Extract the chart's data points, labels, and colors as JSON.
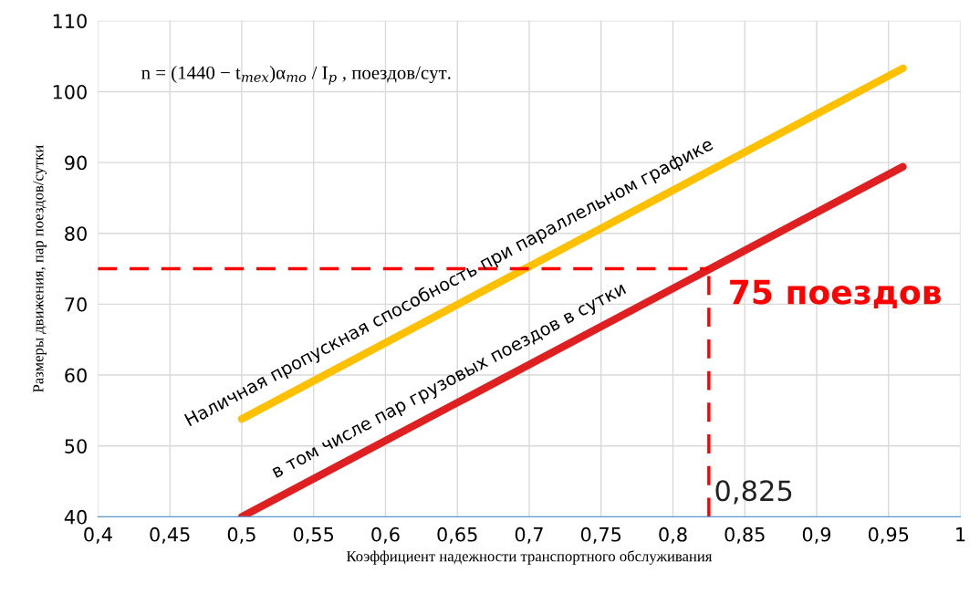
{
  "chart_data": {
    "type": "line",
    "xlabel": "Коэффициент надежности транспортного обслуживания",
    "ylabel": "Размеры движения, пар поездов/сутки",
    "x": [
      0.5,
      0.96
    ],
    "series": [
      {
        "name": "Наличная пропускная способность при параллельном графике",
        "color": "#ffc000",
        "values": [
          53.8,
          103.3
        ]
      },
      {
        "name": "в том числе пар грузовых поездов в сутки",
        "color": "#e02020",
        "values": [
          40,
          89.4
        ]
      }
    ],
    "xlim": [
      0.4,
      1.0
    ],
    "xticks": [
      {
        "value": 0.4,
        "label": "0,4"
      },
      {
        "value": 0.45,
        "label": "0,45"
      },
      {
        "value": 0.5,
        "label": "0,5"
      },
      {
        "value": 0.55,
        "label": "0,55"
      },
      {
        "value": 0.6,
        "label": "0,6"
      },
      {
        "value": 0.65,
        "label": "0,65"
      },
      {
        "value": 0.7,
        "label": "0,7"
      },
      {
        "value": 0.75,
        "label": "0,75"
      },
      {
        "value": 0.8,
        "label": "0,8"
      },
      {
        "value": 0.85,
        "label": "0,85"
      },
      {
        "value": 0.9,
        "label": "0,9"
      },
      {
        "value": 0.95,
        "label": "0,95"
      },
      {
        "value": 1.0,
        "label": "1"
      }
    ],
    "ylim": [
      40,
      110
    ],
    "yticks": [
      40,
      50,
      60,
      70,
      80,
      90,
      100,
      110
    ],
    "ref_lines": [
      {
        "axis": "y",
        "value": 75,
        "label": "75 поездов",
        "color": "#ff0000",
        "line_style": "dashed"
      },
      {
        "axis": "x",
        "value": 0.825,
        "label": "0,825",
        "color": "#ff0000",
        "line_style": "dashed"
      }
    ],
    "annotations": [
      "n = (1440 − t$_{тех}$)α$_{то}$ / I$_{р}$ , поездов/сут."
    ],
    "grid": true,
    "marker": "none",
    "line_style": "solid"
  }
}
